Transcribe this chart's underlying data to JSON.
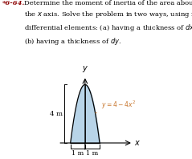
{
  "curve_label": "y = 4 - 4x^2",
  "y_label": "y",
  "x_label": "x",
  "dim_label_left": "4 m",
  "dim_label_bottom1": "1 m",
  "dim_label_bottom2": "1 m",
  "curve_color": "#b8d4e8",
  "curve_edge_color": "#000000",
  "curve_label_color": "#c87830",
  "bg_color": "#ffffff",
  "text_color": "#000000",
  "title_bold": "*6-64.",
  "title_rest": "   Determine the moment of inertia of the area about\nthe x axis. Solve the problem in two ways, using rectangular\ndifferential elements: (a) having a thickness of dx, and\n(b) having a thickness of dy."
}
